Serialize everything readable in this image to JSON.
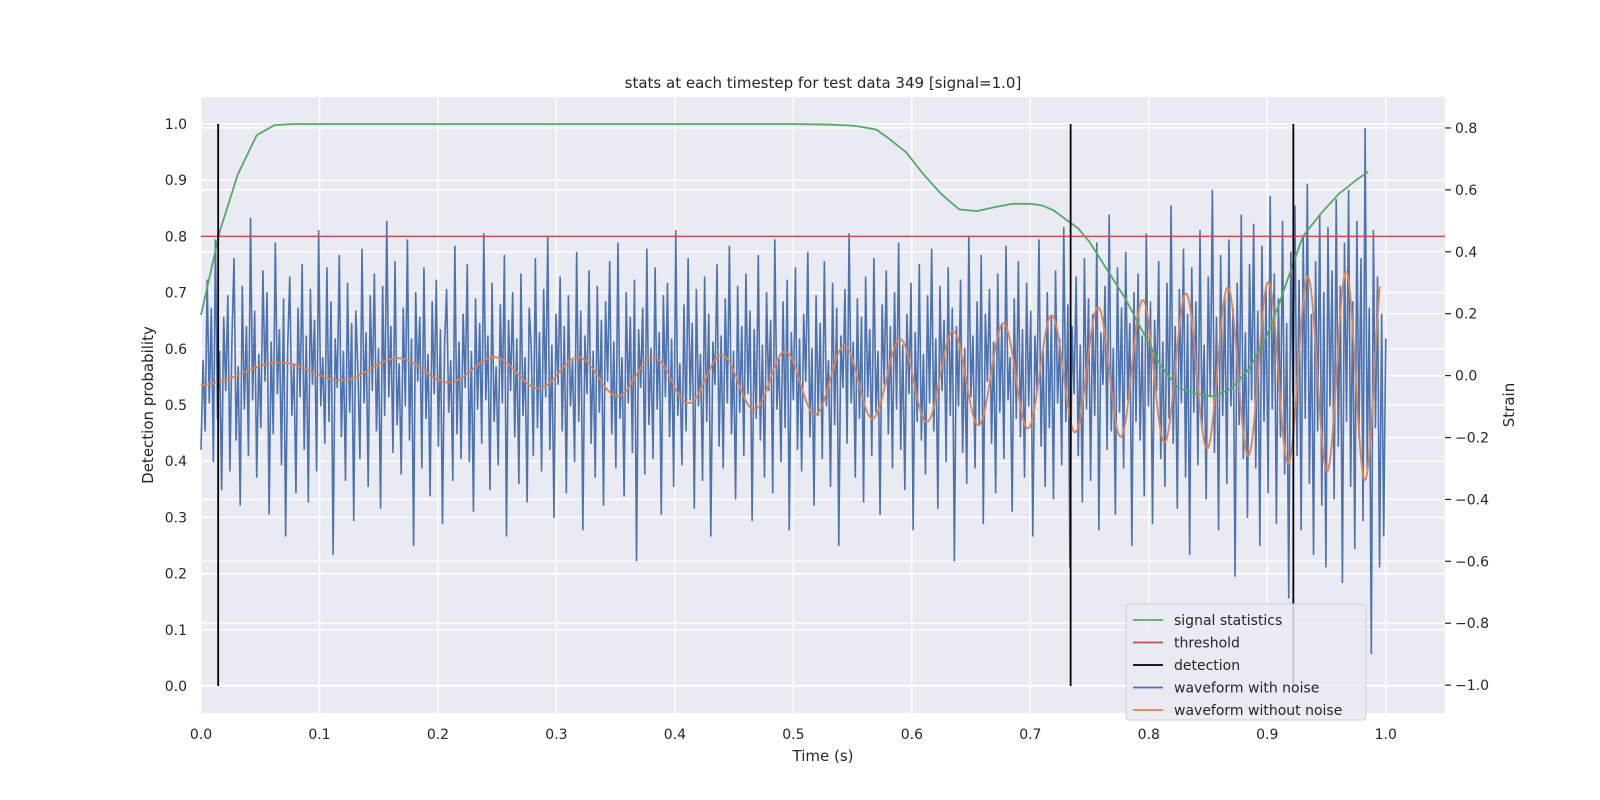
{
  "chart_data": {
    "type": "line",
    "title": "stats at each timestep for test data 349 [signal=1.0]",
    "xlabel": "Time (s)",
    "ylabel_left": "Detection probability",
    "ylabel_right": "Strain",
    "xlim": [
      0.0,
      1.05
    ],
    "ylim_left": [
      -0.048,
      1.048
    ],
    "ylim_right": [
      -1.09,
      0.9
    ],
    "x_ticks": [
      0.0,
      0.1,
      0.2,
      0.3,
      0.4,
      0.5,
      0.6,
      0.7,
      0.8,
      0.9,
      1.0
    ],
    "x_tick_labels": [
      "0.0",
      "0.1",
      "0.2",
      "0.3",
      "0.4",
      "0.5",
      "0.6",
      "0.7",
      "0.8",
      "0.9",
      "1.0"
    ],
    "left_ticks": [
      0.0,
      0.1,
      0.2,
      0.3,
      0.4,
      0.5,
      0.6,
      0.7,
      0.8,
      0.9,
      1.0
    ],
    "left_tick_labels": [
      "0.0",
      "0.1",
      "0.2",
      "0.3",
      "0.4",
      "0.5",
      "0.6",
      "0.7",
      "0.8",
      "0.9",
      "1.0"
    ],
    "right_ticks": [
      -1.0,
      -0.8,
      -0.6,
      -0.4,
      -0.2,
      0.0,
      0.2,
      0.4,
      0.6,
      0.8
    ],
    "right_tick_labels": [
      "−1.0",
      "−0.8",
      "−0.6",
      "−0.4",
      "−0.2",
      "0.0",
      "0.2",
      "0.4",
      "0.6",
      "0.8"
    ],
    "grid": true,
    "legend_position": "lower-right",
    "series": [
      {
        "name": "signal statistics",
        "axis": "left",
        "color": "#55a868",
        "x": [
          0.0,
          0.016,
          0.031,
          0.047,
          0.062,
          0.078,
          0.094,
          0.109,
          0.125,
          0.2,
          0.3,
          0.4,
          0.5,
          0.53,
          0.55,
          0.56,
          0.57,
          0.58,
          0.595,
          0.61,
          0.625,
          0.64,
          0.655,
          0.67,
          0.685,
          0.7,
          0.71,
          0.72,
          0.73,
          0.74,
          0.75,
          0.765,
          0.78,
          0.795,
          0.81,
          0.825,
          0.84,
          0.855,
          0.87,
          0.885,
          0.9,
          0.91,
          0.92,
          0.93,
          0.945,
          0.96,
          0.975,
          0.985
        ],
        "values": [
          0.66,
          0.81,
          0.91,
          0.98,
          0.998,
          1.0,
          1.0,
          1.0,
          1.0,
          1.0,
          1.0,
          1.0,
          1.0,
          0.999,
          0.997,
          0.994,
          0.99,
          0.975,
          0.95,
          0.91,
          0.875,
          0.848,
          0.845,
          0.852,
          0.858,
          0.858,
          0.855,
          0.846,
          0.83,
          0.815,
          0.79,
          0.74,
          0.69,
          0.63,
          0.57,
          0.53,
          0.52,
          0.515,
          0.53,
          0.565,
          0.625,
          0.68,
          0.74,
          0.8,
          0.84,
          0.875,
          0.9,
          0.915
        ]
      },
      {
        "name": "threshold",
        "axis": "left",
        "color": "#c44e52",
        "x": [
          0.0,
          1.05
        ],
        "values": [
          0.8,
          0.8
        ]
      },
      {
        "name": "detection",
        "axis": "left",
        "color": "#000000",
        "x": [
          0.0145,
          0.734,
          0.922
        ],
        "values": [
          1.0,
          1.0,
          1.0
        ]
      },
      {
        "name": "waveform with noise",
        "axis": "right",
        "color": "#4c72b0",
        "x_start": 0.0,
        "x_end": 1.0,
        "values": [
          -0.24,
          0.05,
          -0.18,
          0.31,
          -0.09,
          0.22,
          -0.28,
          0.44,
          -0.14,
          0.08,
          -0.37,
          0.19,
          -0.05,
          0.26,
          -0.31,
          0.12,
          0.38,
          -0.21,
          0.03,
          -0.42,
          0.29,
          -0.11,
          0.16,
          -0.26,
          0.51,
          -0.08,
          0.21,
          -0.33,
          0.07,
          -0.17,
          0.34,
          -0.02,
          0.27,
          -0.45,
          0.11,
          -0.19,
          0.43,
          -0.06,
          0.15,
          -0.29,
          0.25,
          -0.52,
          0.09,
          0.32,
          -0.13,
          0.04,
          -0.38,
          0.22,
          -0.07,
          0.36,
          -0.24,
          0.13,
          -0.41,
          0.28,
          -0.03,
          0.18,
          -0.31,
          0.47,
          -0.1,
          0.06,
          -0.22,
          0.35,
          -0.15,
          0.24,
          -0.58,
          0.12,
          -0.04,
          0.39,
          -0.2,
          0.08,
          -0.34,
          0.3,
          -0.12,
          0.17,
          -0.47,
          0.21,
          0.02,
          -0.27,
          0.41,
          -0.09,
          0.14,
          -0.36,
          0.26,
          -0.05,
          0.33,
          -0.18,
          0.09,
          -0.43,
          0.29,
          -0.13,
          0.5,
          -0.07,
          0.16,
          -0.25,
          0.37,
          -0.16,
          0.04,
          -0.32,
          0.22,
          -0.1,
          0.44,
          -0.21,
          0.12,
          -0.55,
          0.27,
          -0.02,
          0.19,
          -0.3,
          0.35,
          -0.14,
          0.07,
          -0.39,
          0.24,
          -0.06,
          0.31,
          -0.23,
          0.15,
          -0.48,
          0.1,
          0.28,
          -0.12,
          0.05,
          -0.34,
          0.42,
          -0.19,
          0.11,
          -0.27,
          0.2,
          -0.04,
          0.36,
          -0.28,
          0.08,
          -0.44,
          0.25,
          -0.11,
          0.17,
          -0.22,
          0.46,
          -0.08,
          0.13,
          -0.37,
          0.3,
          -0.15,
          0.03,
          -0.29,
          0.23,
          -0.09,
          0.39,
          -0.52,
          0.18,
          -0.05,
          0.27,
          -0.2,
          0.12,
          -0.35,
          0.33,
          -0.13,
          0.06,
          -0.41,
          0.22,
          0.09,
          -0.26,
          0.38,
          -0.17,
          0.14,
          -0.31,
          0.28,
          -0.07,
          0.45,
          -0.24,
          0.1,
          -0.46,
          0.2,
          -0.03,
          0.32,
          -0.18,
          0.16,
          -0.38,
          0.26,
          -0.1,
          0.05,
          -0.28,
          0.4,
          -0.15,
          0.21,
          -0.5,
          0.13,
          -0.06,
          0.34,
          -0.22,
          0.08,
          -0.33,
          0.29,
          -0.12,
          0.18,
          -0.42,
          0.24,
          -0.02,
          0.37,
          -0.19,
          0.11,
          -0.3,
          0.43,
          -0.14,
          0.06,
          -0.39,
          0.27,
          -0.09,
          0.19,
          -0.25,
          0.31,
          -0.6,
          0.15,
          -0.04,
          0.22,
          -0.32,
          0.41,
          -0.16,
          0.09,
          -0.27,
          0.35,
          -0.11,
          0.14,
          -0.45,
          0.26,
          -0.07,
          0.3,
          -0.2,
          0.12,
          -0.36,
          0.47,
          -0.13,
          0.04,
          -0.29,
          0.23,
          -0.18,
          0.38,
          -0.08,
          0.17,
          -0.43,
          0.28,
          -0.1,
          0.07,
          -0.34,
          0.32,
          -0.15,
          0.2,
          -0.52,
          0.11,
          -0.03,
          0.36,
          -0.23,
          0.13,
          -0.3,
          0.25,
          -0.09,
          0.42,
          -0.19,
          0.08,
          -0.4,
          0.29,
          -0.12,
          0.16,
          -0.26,
          0.33,
          -0.06,
          0.21,
          -0.47,
          0.15,
          -0.14,
          0.39,
          -0.21,
          0.1,
          -0.33,
          0.27,
          -0.05,
          0.18,
          -0.38,
          0.44,
          -0.11,
          0.06,
          -0.28,
          0.24,
          -0.17,
          0.31,
          -0.5,
          0.14,
          -0.08,
          0.35,
          -0.24,
          0.12,
          -0.31,
          0.2,
          -0.02,
          0.4,
          -0.2,
          0.09,
          -0.42,
          0.26,
          -0.13,
          0.17,
          -0.27,
          0.37,
          -0.1,
          0.05,
          -0.36,
          0.3,
          -0.16,
          0.22,
          -0.55,
          0.13,
          -0.04,
          0.28,
          -0.22,
          0.46,
          -0.09,
          0.11,
          -0.33,
          0.25,
          -0.14,
          0.19,
          -0.41,
          0.32,
          -0.07,
          0.15,
          -0.26,
          0.38,
          -0.12,
          0.08,
          -0.45,
          0.23,
          -0.03,
          0.34,
          -0.19,
          0.16,
          -0.3,
          0.27,
          -0.11,
          0.43,
          -0.24,
          0.1,
          -0.37,
          0.2,
          -0.06,
          0.3,
          -0.5,
          0.14,
          -0.15,
          0.36,
          -0.21,
          0.07,
          -0.32,
          0.26,
          -0.09,
          0.41,
          -0.18,
          0.12,
          -0.43,
          0.29,
          -0.05,
          0.18,
          -0.28,
          0.35,
          -0.13,
          0.22,
          -0.6,
          0.16,
          -0.1,
          0.31,
          -0.25,
          0.09,
          -0.35,
          0.45,
          -0.07,
          0.13,
          -0.3,
          0.24,
          -0.16,
          0.39,
          -0.48,
          0.2,
          -0.02,
          0.28,
          -0.22,
          0.11,
          -0.38,
          0.33,
          -0.12,
          0.17,
          -0.27,
          0.42,
          -0.08,
          0.06,
          -0.44,
          0.25,
          -0.14,
          0.37,
          -0.2,
          0.15,
          -0.33,
          0.3,
          -0.1,
          0.21,
          -0.52,
          0.13,
          -0.05,
          0.44,
          -0.23,
          0.08,
          -0.36,
          0.27,
          -0.17,
          0.19,
          -0.4,
          0.34,
          -0.09,
          0.12,
          -0.29,
          0.48,
          -0.15,
          0.23,
          -0.62,
          0.16,
          -0.06,
          0.32,
          -0.26,
          0.1,
          -0.41,
          0.38,
          -0.11,
          0.25,
          -0.34,
          0.2,
          -0.13,
          0.43,
          -0.5,
          0.14,
          -0.03,
          0.29,
          -0.24,
          0.52,
          -0.18,
          0.09,
          -0.45,
          0.35,
          -0.12,
          0.22,
          -0.3,
          0.4,
          -0.08,
          0.17,
          -0.55,
          0.27,
          -0.15,
          0.33,
          -0.21,
          0.13,
          -0.39,
          0.46,
          -0.1,
          0.24,
          -0.48,
          0.18,
          -0.05,
          0.37,
          -0.27,
          0.11,
          -0.36,
          0.3,
          -0.14,
          0.55,
          -0.22,
          0.16,
          -0.43,
          0.28,
          -0.09,
          0.41,
          -0.33,
          0.2,
          -0.58,
          0.35,
          -0.12,
          0.24,
          -0.29,
          0.47,
          -0.17,
          0.1,
          -0.4,
          0.32,
          -0.07,
          0.6,
          -0.25,
          0.19,
          -0.5,
          0.39,
          -0.13,
          0.26,
          -0.35,
          0.44,
          -0.1,
          0.22,
          -0.65,
          0.3,
          -0.16,
          0.52,
          -0.27,
          0.14,
          -0.46,
          0.36,
          -0.08,
          0.49,
          -0.3,
          0.21,
          -0.55,
          0.42,
          -0.15,
          0.28,
          -0.38,
          0.58,
          -0.11,
          0.33,
          -0.48,
          0.25,
          -0.2,
          0.5,
          -0.32,
          0.17,
          -0.72,
          0.4,
          -0.06,
          0.55,
          -0.26,
          0.31,
          -0.5,
          0.45,
          -0.14,
          0.62,
          -0.35,
          0.2,
          -0.58,
          0.37,
          -0.18,
          0.52,
          -0.42,
          0.27,
          -0.62,
          0.48,
          -0.1,
          0.34,
          -0.4,
          0.57,
          -0.23,
          0.29,
          -0.67,
          0.43,
          -0.15,
          0.6,
          -0.36,
          0.24,
          -0.56,
          0.5,
          -0.2,
          0.38,
          -0.47,
          0.8,
          -0.3,
          0.22,
          -0.9,
          0.47,
          -0.17,
          0.32,
          -0.62,
          0.2,
          -0.52,
          0.12
        ]
      },
      {
        "name": "waveform without noise",
        "axis": "right",
        "color": "#dd8452",
        "x_start": 0.0,
        "x_end": 0.995,
        "f0": 7.0,
        "f1": 32.0,
        "amp0": 0.03,
        "amp1": 0.35
      }
    ]
  }
}
